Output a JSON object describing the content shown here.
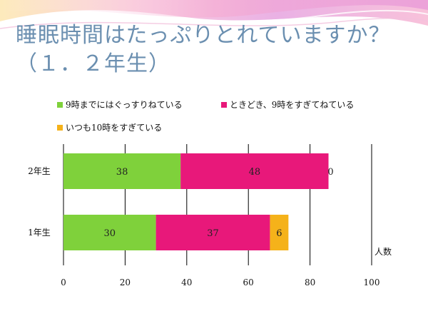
{
  "slide": {
    "title_line1": "睡眠時間はたっぷりとれていますか？",
    "title_line2": "（１．２年生）"
  },
  "colors": {
    "series1": "#7fd13b",
    "series2": "#e8187a",
    "series3": "#f5b21a",
    "title": "#6b8fb0",
    "grid": "#000000"
  },
  "chart_data": {
    "type": "bar",
    "orientation": "horizontal",
    "stacked": true,
    "categories": [
      "2年生",
      "1年生"
    ],
    "series": [
      {
        "name": "9時までにはぐっすりねている",
        "values": [
          38,
          30
        ]
      },
      {
        "name": "ときどき、9時をすぎてねている",
        "values": [
          48,
          37
        ]
      },
      {
        "name": "いつも10時をすぎている",
        "values": [
          0,
          6
        ]
      }
    ],
    "data_labels": [
      [
        "38",
        "48",
        "0"
      ],
      [
        "30",
        "37",
        "6"
      ]
    ],
    "xlim": [
      0,
      100
    ],
    "xticks": [
      "0",
      "20",
      "40",
      "60",
      "80",
      "100"
    ],
    "xlabel": "人数",
    "legend_position": "top",
    "grid": true
  }
}
